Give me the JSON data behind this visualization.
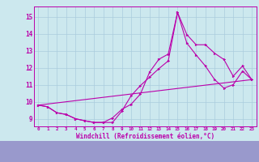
{
  "bg_color": "#cce8ee",
  "plot_bg_color": "#cce8ee",
  "label_bg_color": "#8888cc",
  "line_color": "#bb00aa",
  "grid_color": "#aaccdd",
  "xlabel": "Windchill (Refroidissement éolien,°C)",
  "xlim_min": -0.5,
  "xlim_max": 23.5,
  "ylim_min": 8.55,
  "ylim_max": 15.6,
  "xticks": [
    0,
    1,
    2,
    3,
    4,
    5,
    6,
    7,
    8,
    9,
    10,
    11,
    12,
    13,
    14,
    15,
    16,
    17,
    18,
    19,
    20,
    21,
    22,
    23
  ],
  "yticks": [
    9,
    10,
    11,
    12,
    13,
    14,
    15
  ],
  "curve1_x": [
    0,
    1,
    2,
    3,
    4,
    5,
    6,
    7,
    8,
    9,
    10,
    11,
    12,
    13,
    14,
    15,
    16,
    17,
    18,
    19,
    20,
    21,
    22,
    23
  ],
  "curve1_y": [
    9.8,
    9.7,
    9.35,
    9.25,
    9.0,
    8.88,
    8.78,
    8.78,
    9.05,
    9.55,
    9.85,
    10.45,
    11.75,
    12.5,
    12.8,
    15.25,
    13.95,
    13.35,
    13.35,
    12.85,
    12.48,
    11.5,
    12.1,
    11.3
  ],
  "curve2_x": [
    0,
    1,
    2,
    3,
    4,
    5,
    6,
    7,
    8,
    9,
    10,
    11,
    12,
    13,
    14,
    15,
    16,
    17,
    18,
    19,
    20,
    21,
    22,
    23
  ],
  "curve2_y": [
    9.8,
    9.7,
    9.35,
    9.25,
    9.0,
    8.88,
    8.78,
    8.78,
    8.78,
    9.45,
    10.35,
    10.95,
    11.45,
    11.95,
    12.4,
    15.25,
    13.45,
    12.75,
    12.1,
    11.3,
    10.8,
    11.0,
    11.8,
    11.3
  ],
  "curve3_x": [
    0,
    23
  ],
  "curve3_y": [
    9.8,
    11.3
  ]
}
